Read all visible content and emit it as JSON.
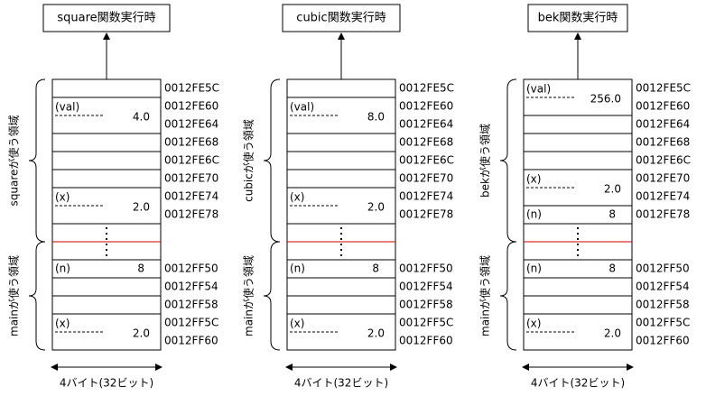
{
  "panels": [
    {
      "title": "square関数実行時",
      "frame_label": "squareが使う領域",
      "main_label": "mainが使う領域",
      "frame_cells": [
        {
          "label": "(val)",
          "value": "4.0"
        },
        {
          "label": "(x)",
          "value": "2.0"
        }
      ],
      "main_cells": [
        {
          "label": "(n)",
          "value": "8"
        },
        {
          "label": "(x)",
          "value": "2.0"
        }
      ],
      "addresses": [
        "0012FE5C",
        "0012FE60",
        "0012FE64",
        "0012FE68",
        "0012FE6C",
        "0012FE70",
        "0012FE74",
        "0012FE78",
        "0012FF50",
        "0012FF54",
        "0012FF58",
        "0012FF5C",
        "0012FF60"
      ],
      "width_label": "4バイト(32ビット)"
    },
    {
      "title": "cubic関数実行時",
      "frame_label": "cubicが使う領域",
      "main_label": "mainが使う領域",
      "frame_cells": [
        {
          "label": "(val)",
          "value": "8.0"
        },
        {
          "label": "(x)",
          "value": "2.0"
        }
      ],
      "main_cells": [
        {
          "label": "(n)",
          "value": "8"
        },
        {
          "label": "(x)",
          "value": "2.0"
        }
      ],
      "addresses": [
        "0012FE5C",
        "0012FE60",
        "0012FE64",
        "0012FE68",
        "0012FE6C",
        "0012FE70",
        "0012FE74",
        "0012FE78",
        "0012FF50",
        "0012FF54",
        "0012FF58",
        "0012FF5C",
        "0012FF60"
      ],
      "width_label": "4バイト(32ビット)"
    },
    {
      "title": "bek関数実行時",
      "frame_label": "bekが使う領域",
      "main_label": "mainが使う領域",
      "frame_cells": [
        {
          "label": "(val)",
          "value": "256.0"
        },
        {
          "label": "(x)",
          "value": "2.0"
        },
        {
          "label": "(n)",
          "value": "8"
        }
      ],
      "main_cells": [
        {
          "label": "(n)",
          "value": "8"
        },
        {
          "label": "(x)",
          "value": "2.0"
        }
      ],
      "addresses": [
        "0012FE5C",
        "0012FE60",
        "0012FE64",
        "0012FE68",
        "0012FE6C",
        "0012FE70",
        "0012FE74",
        "0012FE78",
        "0012FF50",
        "0012FF54",
        "0012FF58",
        "0012FF5C",
        "0012FF60"
      ],
      "width_label": "4バイト(32ビット)"
    }
  ]
}
